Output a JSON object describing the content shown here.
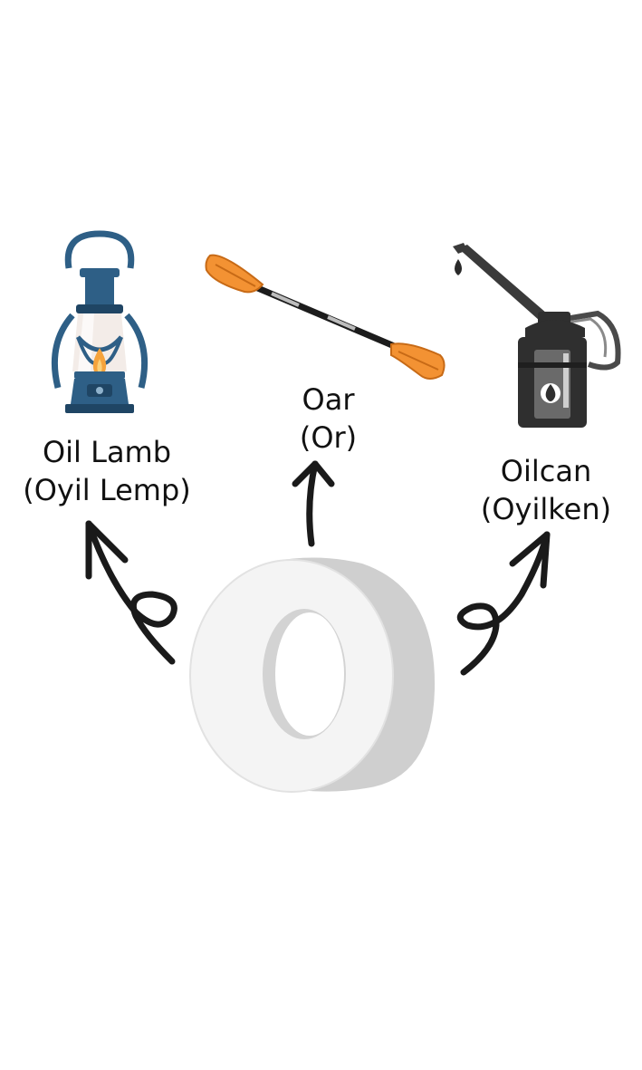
{
  "letter": "O",
  "words": [
    {
      "id": "lamp",
      "word": "Oil Lamb",
      "pronunciation": "(Oyil Lemp)",
      "icon": "oil-lamp-icon"
    },
    {
      "id": "oar",
      "word": "Oar",
      "pronunciation": "(Or)",
      "icon": "oar-icon"
    },
    {
      "id": "oilcan",
      "word": "Oilcan",
      "pronunciation": "(Oyilken)",
      "icon": "oilcan-icon"
    }
  ],
  "colors": {
    "lamp_blue": "#2e5f86",
    "lamp_dark": "#1f4564",
    "flame": "#f5a33c",
    "oar_orange": "#f39233",
    "oilcan_dark": "#2f2f2f",
    "arrow": "#1a1a1a",
    "letter_face": "#f4f4f4",
    "letter_side": "#cfcfcf"
  }
}
